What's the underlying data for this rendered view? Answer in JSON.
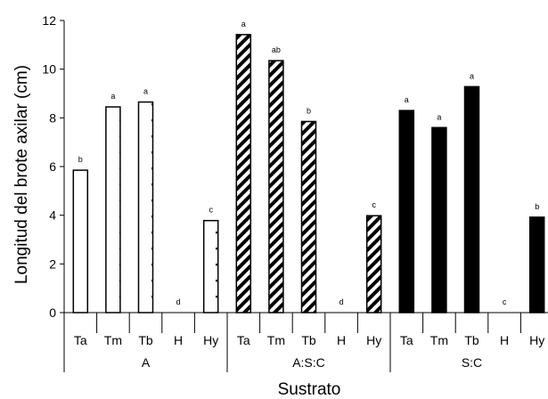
{
  "chart_data": {
    "type": "bar",
    "ylabel": "Longitud del brote axilar (cm)",
    "xlabel": "Sustrato",
    "ylim": [
      0,
      12
    ],
    "yticks": [
      0,
      2,
      4,
      6,
      8,
      10,
      12
    ],
    "groups": [
      {
        "name": "A",
        "pattern": "dotted",
        "bars": [
          {
            "category": "Ta",
            "value": 5.85,
            "letter": "b"
          },
          {
            "category": "Tm",
            "value": 8.45,
            "letter": "a"
          },
          {
            "category": "Tb",
            "value": 8.65,
            "letter": "a"
          },
          {
            "category": "H",
            "value": 0,
            "letter": "d"
          },
          {
            "category": "Hy",
            "value": 3.78,
            "letter": "c"
          }
        ]
      },
      {
        "name": "A:S:C",
        "pattern": "diagonal",
        "bars": [
          {
            "category": "Ta",
            "value": 11.42,
            "letter": "a"
          },
          {
            "category": "Tm",
            "value": 10.35,
            "letter": "ab"
          },
          {
            "category": "Tb",
            "value": 7.85,
            "letter": "b"
          },
          {
            "category": "H",
            "value": 0,
            "letter": "d"
          },
          {
            "category": "Hy",
            "value": 3.98,
            "letter": "c"
          }
        ]
      },
      {
        "name": "S:C",
        "pattern": "solid",
        "bars": [
          {
            "category": "Ta",
            "value": 8.3,
            "letter": "a"
          },
          {
            "category": "Tm",
            "value": 7.6,
            "letter": "a"
          },
          {
            "category": "Tb",
            "value": 9.28,
            "letter": "a"
          },
          {
            "category": "H",
            "value": 0,
            "letter": "c"
          },
          {
            "category": "Hy",
            "value": 3.92,
            "letter": "b"
          }
        ]
      }
    ]
  }
}
